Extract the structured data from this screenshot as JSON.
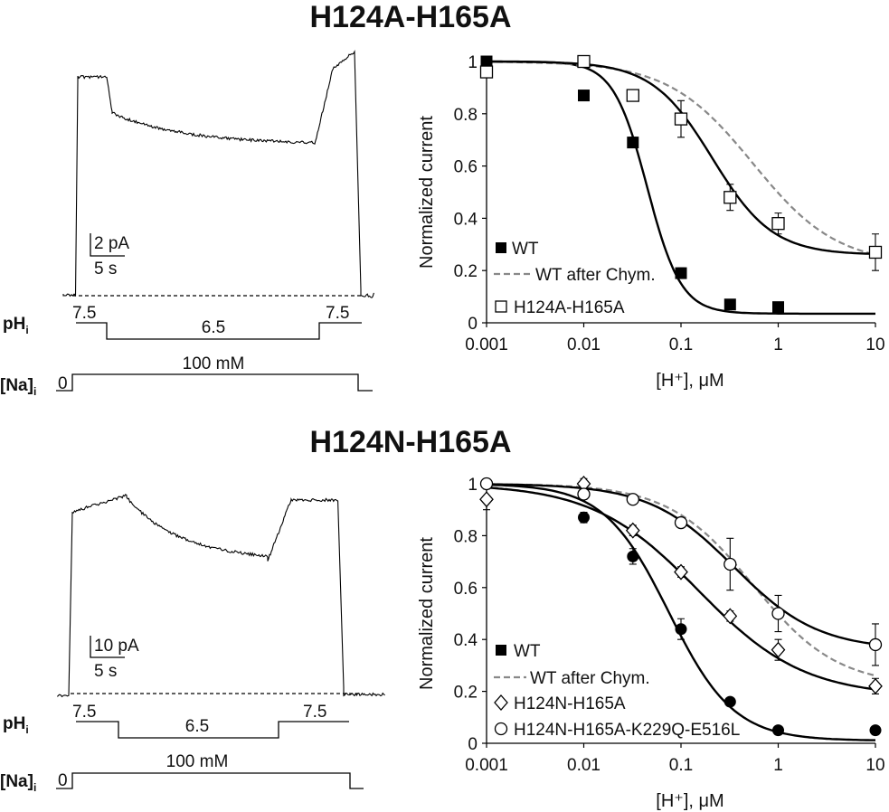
{
  "panels": [
    {
      "title": "H124A-H165A",
      "trace": {
        "scale_current": "2 pA",
        "scale_time": "5 s",
        "ph_label": "pH",
        "ph_sub": "i",
        "ph_values": [
          "7.5",
          "6.5",
          "7.5"
        ],
        "na_label": "[Na]",
        "na_sub": "i",
        "na_values": [
          "0",
          "100 mM"
        ]
      }
    },
    {
      "title": "H124N-H165A",
      "trace": {
        "scale_current": "10 pA",
        "scale_time": "5 s",
        "ph_label": "pH",
        "ph_sub": "i",
        "ph_values": [
          "7.5",
          "6.5",
          "7.5"
        ],
        "na_label": "[Na]",
        "na_sub": "i",
        "na_values": [
          "0",
          "100 mM"
        ]
      }
    }
  ],
  "chart_data": [
    {
      "type": "scatter",
      "title": "H124A-H165A",
      "xlabel": "[H⁺], μM",
      "ylabel": "Normalized current",
      "x_scale": "log",
      "xlim": [
        0.001,
        10
      ],
      "ylim": [
        0,
        1
      ],
      "x_ticks": [
        "0.001",
        "0.01",
        "0.1",
        "1",
        "10"
      ],
      "y_ticks": [
        "0",
        "0.2",
        "0.4",
        "0.6",
        "0.8",
        "1"
      ],
      "legend_position": "bottom-left",
      "series": [
        {
          "name": "WT",
          "marker": "filled-square",
          "x": [
            0.001,
            0.01,
            0.032,
            0.1,
            0.32,
            1
          ],
          "y": [
            1.0,
            0.87,
            0.69,
            0.19,
            0.07,
            0.06
          ],
          "err": [
            0,
            0.01,
            0.02,
            0.02,
            0.01,
            0.01
          ],
          "fit": {
            "ic50": 0.045,
            "n": 2.5,
            "min": 0.035
          }
        },
        {
          "name": "WT after Chym.",
          "style": "dashed-gray",
          "fit": {
            "ic50": 0.55,
            "n": 1.0,
            "min": 0.22
          }
        },
        {
          "name": "H124A-H165A",
          "marker": "open-square",
          "x": [
            0.001,
            0.01,
            0.032,
            0.1,
            0.32,
            1,
            10
          ],
          "y": [
            0.96,
            1.0,
            0.87,
            0.78,
            0.48,
            0.38,
            0.27
          ],
          "err": [
            0.02,
            0.01,
            0.02,
            0.07,
            0.05,
            0.04,
            0.07
          ],
          "fit": {
            "ic50": 0.21,
            "n": 1.4,
            "min": 0.26
          }
        }
      ]
    },
    {
      "type": "scatter",
      "title": "H124N-H165A",
      "xlabel": "[H⁺], μM",
      "ylabel": "Normalized current",
      "x_scale": "log",
      "xlim": [
        0.001,
        10
      ],
      "ylim": [
        0,
        1
      ],
      "x_ticks": [
        "0.001",
        "0.01",
        "0.1",
        "1",
        "10"
      ],
      "y_ticks": [
        "0",
        "0.2",
        "0.4",
        "0.6",
        "0.8",
        "1"
      ],
      "legend_position": "bottom-left",
      "series": [
        {
          "name": "WT",
          "marker": "filled-circle",
          "x": [
            0.01,
            0.032,
            0.1,
            0.32,
            1,
            10
          ],
          "y": [
            0.87,
            0.72,
            0.44,
            0.16,
            0.05,
            0.05
          ],
          "err": [
            0.02,
            0.03,
            0.04,
            0.01,
            0.01,
            0.01
          ],
          "fit": {
            "ic50": 0.075,
            "n": 1.3,
            "min": 0.01
          }
        },
        {
          "name": "WT after Chym.",
          "style": "dashed-gray",
          "fit": {
            "ic50": 0.55,
            "n": 1.0,
            "min": 0.22
          }
        },
        {
          "name": "H124N-H165A",
          "marker": "open-diamond",
          "x": [
            0.001,
            0.01,
            0.032,
            0.1,
            0.32,
            1,
            10
          ],
          "y": [
            0.94,
            1.0,
            0.82,
            0.66,
            0.49,
            0.36,
            0.22
          ],
          "err": [
            0.04,
            0.02,
            0.02,
            0.02,
            0.02,
            0.04,
            0.03
          ],
          "fit": {
            "ic50": 0.15,
            "n": 0.8,
            "min": 0.18
          }
        },
        {
          "name": "H124N-H165A-K229Q-E516L",
          "marker": "open-circle",
          "x": [
            0.001,
            0.01,
            0.032,
            0.1,
            0.32,
            1,
            10
          ],
          "y": [
            1.0,
            0.96,
            0.94,
            0.85,
            0.69,
            0.5,
            0.38
          ],
          "err": [
            0.01,
            0.02,
            0.01,
            0.01,
            0.1,
            0.07,
            0.08
          ],
          "fit": {
            "ic50": 0.35,
            "n": 1.0,
            "min": 0.36
          }
        }
      ]
    }
  ]
}
